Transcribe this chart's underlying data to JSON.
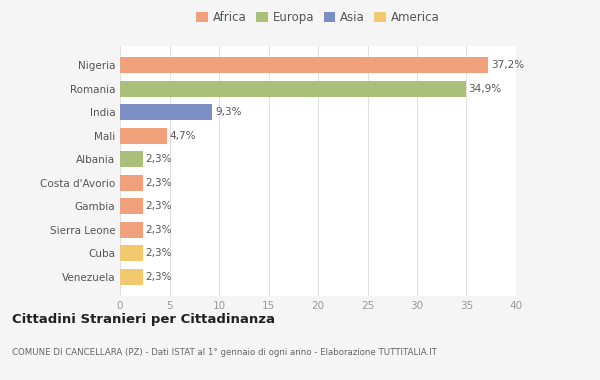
{
  "countries": [
    "Venezuela",
    "Cuba",
    "Sierra Leone",
    "Gambia",
    "Costa d'Avorio",
    "Albania",
    "Mali",
    "India",
    "Romania",
    "Nigeria"
  ],
  "values": [
    2.3,
    2.3,
    2.3,
    2.3,
    2.3,
    2.3,
    4.7,
    9.3,
    34.9,
    37.2
  ],
  "labels": [
    "2,3%",
    "2,3%",
    "2,3%",
    "2,3%",
    "2,3%",
    "2,3%",
    "4,7%",
    "9,3%",
    "34,9%",
    "37,2%"
  ],
  "colors": [
    "#F2C96E",
    "#F2C96E",
    "#F0A07A",
    "#F0A07A",
    "#F0A07A",
    "#AABF7A",
    "#F0A07A",
    "#7B8FC4",
    "#AABF7A",
    "#F0A07A"
  ],
  "legend_labels": [
    "Africa",
    "Europa",
    "Asia",
    "America"
  ],
  "legend_colors": [
    "#F0A07A",
    "#AABF7A",
    "#7B8FC4",
    "#F2C96E"
  ],
  "title": "Cittadini Stranieri per Cittadinanza",
  "subtitle": "COMUNE DI CANCELLARA (PZ) - Dati ISTAT al 1° gennaio di ogni anno - Elaborazione TUTTITALIA.IT",
  "xlim": [
    0,
    40
  ],
  "xticks": [
    0,
    5,
    10,
    15,
    20,
    25,
    30,
    35,
    40
  ],
  "background_color": "#f5f5f5",
  "bar_background": "#ffffff",
  "grid_color": "#e0e0e0"
}
